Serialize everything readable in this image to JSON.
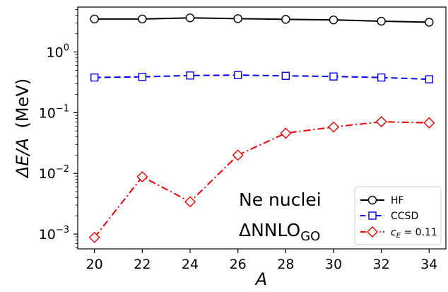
{
  "chart_data": {
    "type": "line",
    "title": "",
    "xlabel": "A",
    "ylabel_prefix": "ΔE/A",
    "ylabel_unit": "(MeV)",
    "yscale": "log",
    "xlim": [
      19.3,
      34.7
    ],
    "ylim": [
      0.00057,
      5.5
    ],
    "x": [
      20,
      22,
      24,
      26,
      28,
      30,
      32,
      34
    ],
    "xticks": [
      "20",
      "22",
      "24",
      "26",
      "28",
      "30",
      "32",
      "34"
    ],
    "yticks": [
      {
        "value": 0.001,
        "mant": "10",
        "exp": "−3"
      },
      {
        "value": 0.01,
        "mant": "10",
        "exp": "−2"
      },
      {
        "value": 0.1,
        "mant": "10",
        "exp": "−1"
      },
      {
        "value": 1,
        "mant": "10",
        "exp": "0"
      }
    ],
    "series": [
      {
        "name": "HF",
        "color": "#000000",
        "marker": "circle",
        "dash": "",
        "values": [
          3.5,
          3.5,
          3.65,
          3.55,
          3.45,
          3.38,
          3.22,
          3.1
        ]
      },
      {
        "name": "CCSD",
        "color": "#0000ee",
        "marker": "square",
        "dash": "9 5",
        "values": [
          0.38,
          0.39,
          0.41,
          0.415,
          0.405,
          0.395,
          0.38,
          0.355
        ]
      },
      {
        "name": "c_E = 0.11",
        "name_parts": {
          "sym": "c",
          "sub": "E",
          "rest": " = 0.11"
        },
        "color": "#ee0000",
        "marker": "diamond",
        "dash": "10 4 2 4",
        "values": [
          0.00088,
          0.0088,
          0.0034,
          0.02,
          0.046,
          0.058,
          0.071,
          0.068
        ]
      }
    ],
    "annotation": {
      "line1": "Ne nuclei",
      "line2_main": "ΔNNLO",
      "line2_sub": "GO"
    },
    "legend_position": "lower-right",
    "grid": false
  }
}
